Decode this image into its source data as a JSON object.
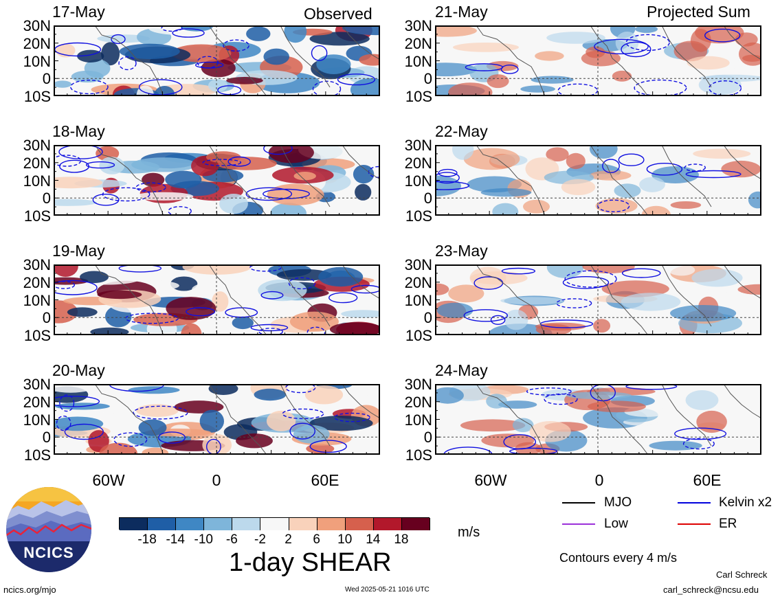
{
  "figure": {
    "column_headers": [
      "Observed",
      "Projected Sum"
    ],
    "panels": [
      {
        "date": "17-May",
        "column": 0
      },
      {
        "date": "18-May",
        "column": 0
      },
      {
        "date": "19-May",
        "column": 0
      },
      {
        "date": "20-May",
        "column": 0
      },
      {
        "date": "21-May",
        "column": 1
      },
      {
        "date": "22-May",
        "column": 1
      },
      {
        "date": "23-May",
        "column": 1
      },
      {
        "date": "24-May",
        "column": 1
      }
    ],
    "lat_labels": [
      "30N",
      "20N",
      "10N",
      "0",
      "10S"
    ],
    "lon_labels": [
      "60W",
      "0",
      "60E"
    ]
  },
  "colorbar": {
    "ticks": [
      "-18",
      "-14",
      "-10",
      "-6",
      "-2",
      "2",
      "6",
      "10",
      "14",
      "18"
    ],
    "colors": [
      "#0c2c5e",
      "#1f5ea6",
      "#3f87c4",
      "#7eb5da",
      "#bcd9ec",
      "#f7f7f7",
      "#f9d2bb",
      "#f0a07c",
      "#d6604d",
      "#b2182b",
      "#67001f"
    ],
    "units": "m/s",
    "title": "1-day SHEAR"
  },
  "legend": {
    "items": [
      {
        "label": "MJO",
        "color": "#000000"
      },
      {
        "label": "Kelvin x2",
        "color": "#0000dd"
      },
      {
        "label": "Low",
        "color": "#9b30d9"
      },
      {
        "label": "ER",
        "color": "#dd0000"
      }
    ],
    "contour_note": "Contours every 4 m/s"
  },
  "footer": {
    "logo_text": "NCICS",
    "url": "ncics.org/mjo",
    "timestamp": "Wed 2025-05-21 1016 UTC",
    "author": "Carl Schreck",
    "email": "carl_schreck@ncsu.edu"
  }
}
